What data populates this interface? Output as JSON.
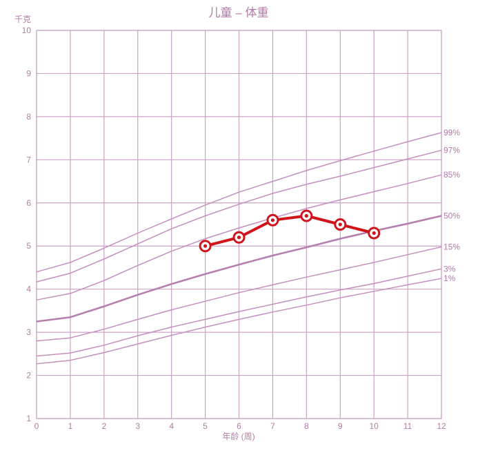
{
  "chart_data": {
    "type": "line",
    "title": "儿童 – 体重",
    "ylabel": "千克",
    "xlabel": "年龄 (周)",
    "xlim": [
      0,
      12
    ],
    "ylim": [
      1,
      10
    ],
    "x_ticks": [
      "0",
      "1",
      "2",
      "3",
      "4",
      "5",
      "6",
      "7",
      "8",
      "9",
      "10",
      "11",
      "12"
    ],
    "y_ticks": [
      "1",
      "2",
      "3",
      "4",
      "5",
      "6",
      "7",
      "8",
      "9",
      "10"
    ],
    "grid": true,
    "colors": {
      "grid": "#c9a3c4",
      "percentile": "#c48fbe",
      "median": "#b57fae",
      "measure": "#d0141b",
      "text": "#b27aa6"
    },
    "percentiles": [
      {
        "name": "99%",
        "x": [
          0,
          1,
          2,
          3,
          4,
          5,
          6,
          7,
          8,
          9,
          10,
          11,
          12
        ],
        "values": [
          4.4,
          4.62,
          4.95,
          5.3,
          5.63,
          5.95,
          6.25,
          6.5,
          6.75,
          6.98,
          7.2,
          7.42,
          7.63
        ]
      },
      {
        "name": "97%",
        "x": [
          0,
          1,
          2,
          3,
          4,
          5,
          6,
          7,
          8,
          9,
          10,
          11,
          12
        ],
        "values": [
          4.17,
          4.37,
          4.7,
          5.05,
          5.4,
          5.7,
          5.97,
          6.22,
          6.43,
          6.62,
          6.82,
          7.02,
          7.22
        ]
      },
      {
        "name": "85%",
        "x": [
          0,
          1,
          2,
          3,
          4,
          5,
          6,
          7,
          8,
          9,
          10,
          11,
          12
        ],
        "values": [
          3.75,
          3.9,
          4.2,
          4.55,
          4.88,
          5.17,
          5.42,
          5.65,
          5.87,
          6.07,
          6.26,
          6.45,
          6.65
        ]
      },
      {
        "name": "50%",
        "x": [
          0,
          1,
          2,
          3,
          4,
          5,
          6,
          7,
          8,
          9,
          10,
          11,
          12
        ],
        "values": [
          3.25,
          3.35,
          3.6,
          3.87,
          4.12,
          4.35,
          4.57,
          4.78,
          4.97,
          5.17,
          5.35,
          5.52,
          5.7
        ]
      },
      {
        "name": "15%",
        "x": [
          0,
          1,
          2,
          3,
          4,
          5,
          6,
          7,
          8,
          9,
          10,
          11,
          12
        ],
        "values": [
          2.8,
          2.87,
          3.07,
          3.3,
          3.52,
          3.72,
          3.92,
          4.1,
          4.28,
          4.45,
          4.62,
          4.8,
          4.98
        ]
      },
      {
        "name": "3%",
        "x": [
          0,
          1,
          2,
          3,
          4,
          5,
          6,
          7,
          8,
          9,
          10,
          11,
          12
        ],
        "values": [
          2.45,
          2.52,
          2.7,
          2.92,
          3.12,
          3.3,
          3.48,
          3.65,
          3.82,
          3.98,
          4.13,
          4.3,
          4.47
        ]
      },
      {
        "name": "1%",
        "x": [
          0,
          1,
          2,
          3,
          4,
          5,
          6,
          7,
          8,
          9,
          10,
          11,
          12
        ],
        "values": [
          2.27,
          2.35,
          2.53,
          2.73,
          2.93,
          3.12,
          3.3,
          3.47,
          3.63,
          3.8,
          3.95,
          4.1,
          4.25
        ]
      }
    ],
    "series": [
      {
        "x": [
          5,
          6,
          7,
          8,
          9,
          10
        ],
        "values": [
          5.0,
          5.2,
          5.6,
          5.7,
          5.5,
          5.3
        ]
      }
    ]
  }
}
